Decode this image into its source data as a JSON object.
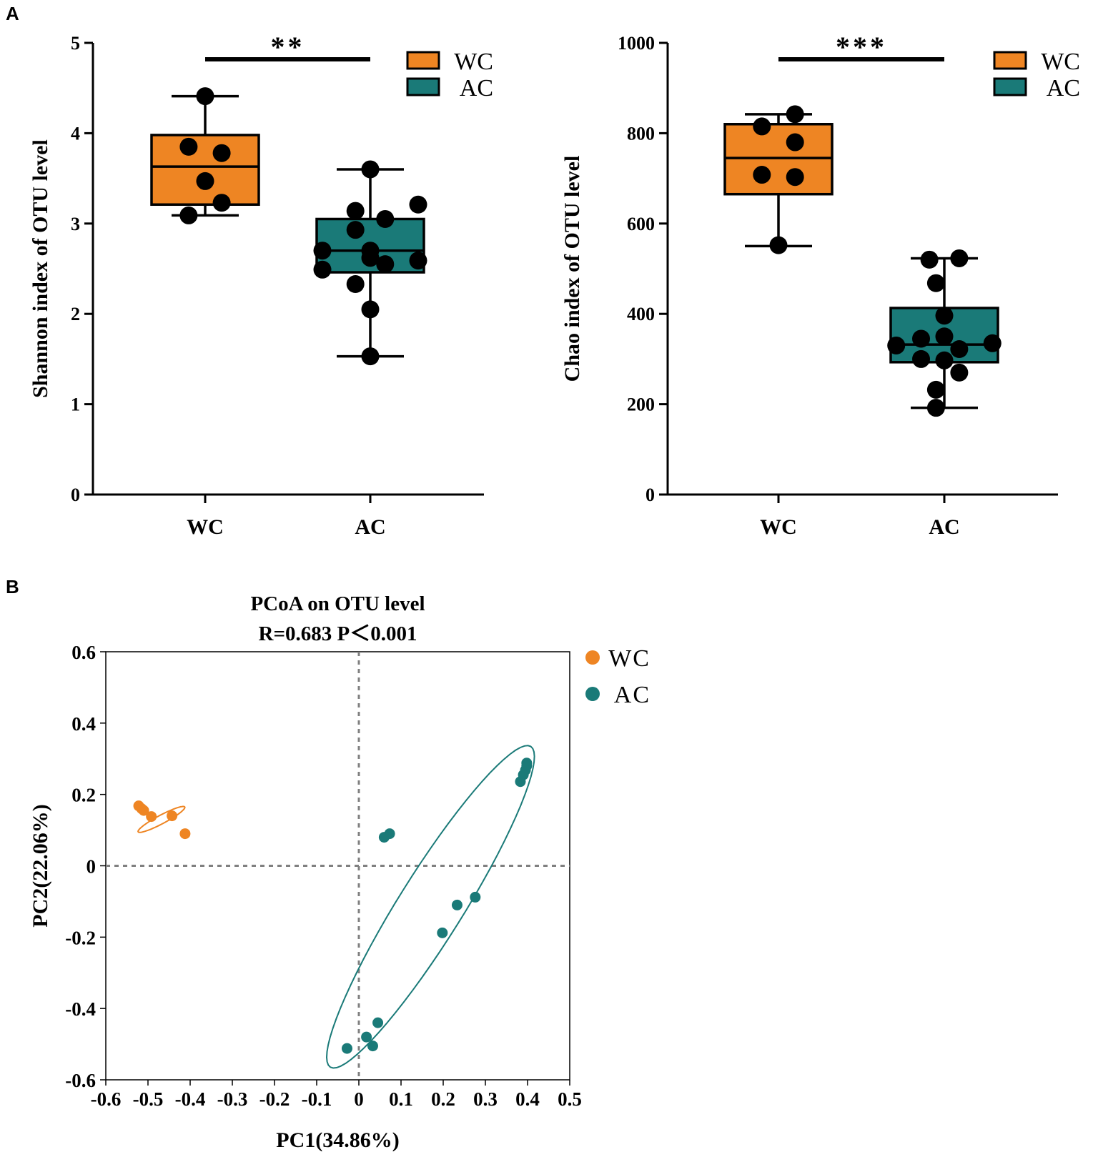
{
  "panels": {
    "a": "A",
    "b": "B"
  },
  "colors": {
    "wc": "#ee8523",
    "ac": "#1a7a78",
    "black": "#000000",
    "gridline": "#808080"
  },
  "chart_data": [
    {
      "type": "box",
      "name": "shannon",
      "ylabel": "Shannon index of OTU level",
      "ylim": [
        0,
        5
      ],
      "yticks": [
        0,
        1,
        2,
        3,
        4,
        5
      ],
      "categories": [
        "WC",
        "AC"
      ],
      "legend": [
        "WC",
        "AC"
      ],
      "legend_position": "top-right",
      "significance": "**",
      "boxes": [
        {
          "group": "WC",
          "min": 3.09,
          "q1": 3.21,
          "median": 3.63,
          "q3": 3.98,
          "max": 4.41
        },
        {
          "group": "AC",
          "min": 1.53,
          "q1": 2.46,
          "median": 2.7,
          "q3": 3.05,
          "max": 3.6
        }
      ],
      "points": [
        {
          "group": "WC",
          "values": [
            4.41,
            3.85,
            3.78,
            3.47,
            3.23,
            3.09
          ],
          "dx": [
            0,
            -0.1,
            0.1,
            0,
            0.1,
            -0.1
          ]
        },
        {
          "group": "AC",
          "values": [
            3.6,
            3.21,
            3.14,
            3.05,
            2.93,
            2.7,
            2.7,
            2.62,
            2.59,
            2.55,
            2.49,
            2.33,
            2.05,
            1.53
          ],
          "dx": [
            0,
            0.29,
            -0.09,
            0.09,
            -0.09,
            -0.29,
            0,
            0,
            0.29,
            0.09,
            -0.29,
            -0.09,
            0,
            0
          ]
        }
      ]
    },
    {
      "type": "box",
      "name": "chao",
      "ylabel": "Chao index of OTU level",
      "ylim": [
        0,
        1000
      ],
      "yticks": [
        0,
        200,
        400,
        600,
        800,
        1000
      ],
      "categories": [
        "WC",
        "AC"
      ],
      "legend": [
        "WC",
        "AC"
      ],
      "legend_position": "top-right",
      "significance": "***",
      "boxes": [
        {
          "group": "WC",
          "min": 550,
          "q1": 665,
          "median": 745,
          "q3": 820,
          "max": 842
        },
        {
          "group": "AC",
          "min": 192,
          "q1": 293,
          "median": 332,
          "q3": 413,
          "max": 523
        }
      ],
      "points": [
        {
          "group": "WC",
          "values": [
            842,
            815,
            780,
            708,
            703,
            552
          ],
          "dx": [
            0.1,
            -0.1,
            0.1,
            -0.1,
            0.1,
            0
          ]
        },
        {
          "group": "AC",
          "values": [
            523,
            520,
            468,
            396,
            350,
            345,
            335,
            330,
            322,
            300,
            297,
            270,
            232,
            192
          ],
          "dx": [
            0.09,
            -0.09,
            -0.05,
            0,
            0,
            -0.14,
            0.29,
            -0.29,
            0.09,
            -0.14,
            0,
            0.09,
            -0.05,
            -0.05
          ]
        }
      ]
    },
    {
      "type": "scatter",
      "name": "pcoa",
      "title": "PCoA on OTU level",
      "subtitle": "R=0.683 P＜0.001",
      "xlabel": "PC1(34.86%)",
      "ylabel": "PC2(22.06%)",
      "xlim": [
        -0.6,
        0.5
      ],
      "ylim": [
        -0.6,
        0.6
      ],
      "xticks": [
        -0.6,
        -0.5,
        -0.4,
        -0.3,
        -0.2,
        -0.1,
        0,
        0.1,
        0.2,
        0.3,
        0.4,
        0.5
      ],
      "yticks": [
        -0.6,
        -0.4,
        -0.2,
        0,
        0.2,
        0.4,
        0.6
      ],
      "legend_position": "right",
      "series": [
        {
          "name": "WC",
          "x": [
            -0.522,
            -0.515,
            -0.51,
            -0.492,
            -0.443,
            -0.412
          ],
          "y": [
            0.168,
            0.16,
            0.155,
            0.138,
            0.14,
            0.09
          ],
          "ellipse": {
            "cx": -0.468,
            "cy": 0.13,
            "rx": 0.074,
            "ry": 0.012,
            "angle_deg": 28
          }
        },
        {
          "name": "AC",
          "x": [
            0.398,
            0.398,
            0.395,
            0.39,
            0.383,
            0.073,
            0.06,
            0.276,
            0.233,
            0.198,
            0.045,
            0.018,
            0.033,
            -0.028
          ],
          "y": [
            0.288,
            0.28,
            0.268,
            0.255,
            0.236,
            0.09,
            0.08,
            -0.088,
            -0.11,
            -0.188,
            -0.44,
            -0.48,
            -0.505,
            -0.512
          ],
          "ellipse": {
            "cx": 0.17,
            "cy": -0.115,
            "rx": 0.53,
            "ry": 0.09,
            "angle_deg": 58
          }
        }
      ]
    }
  ]
}
